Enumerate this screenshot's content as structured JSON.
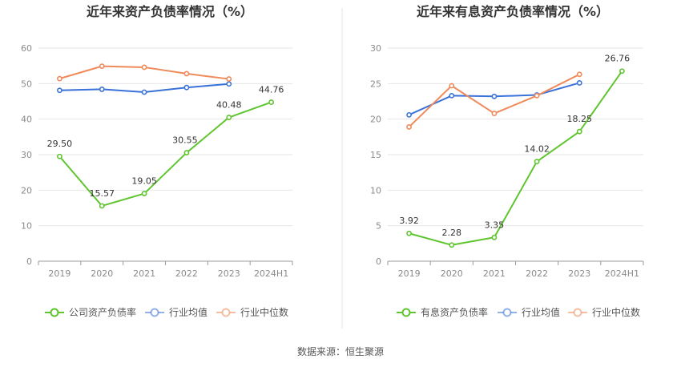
{
  "source": "数据来源：恒生聚源",
  "chart_data": [
    {
      "type": "line",
      "title": "近年来资产负债率情况（%）",
      "categories": [
        "2019",
        "2020",
        "2021",
        "2022",
        "2023",
        "2024H1"
      ],
      "ylim": [
        0,
        60
      ],
      "yticks": [
        0,
        10,
        20,
        30,
        40,
        50,
        60
      ],
      "grid": true,
      "legend_position": "bottom",
      "series": [
        {
          "name": "公司资产负债率",
          "color": "#5fc52e",
          "values": [
            29.5,
            15.57,
            19.05,
            30.55,
            40.48,
            44.76
          ],
          "labels": [
            "29.50",
            "15.57",
            "19.05",
            "30.55",
            "40.48",
            "44.76"
          ]
        },
        {
          "name": "行业均值",
          "color": "#3b72d9",
          "values": [
            48.1,
            48.4,
            47.6,
            48.9,
            49.9,
            null
          ]
        },
        {
          "name": "行业中位数",
          "color": "#ef8a5a",
          "values": [
            51.4,
            54.9,
            54.6,
            52.8,
            51.3,
            null
          ]
        }
      ]
    },
    {
      "type": "line",
      "title": "近年来有息资产负债率情况（%）",
      "categories": [
        "2019",
        "2020",
        "2021",
        "2022",
        "2023",
        "2024H1"
      ],
      "ylim": [
        0,
        30
      ],
      "yticks": [
        0,
        5,
        10,
        15,
        20,
        25,
        30
      ],
      "grid": true,
      "legend_position": "bottom",
      "series": [
        {
          "name": "有息资产负债率",
          "color": "#5fc52e",
          "values": [
            3.92,
            2.28,
            3.35,
            14.02,
            18.25,
            26.76
          ],
          "labels": [
            "3.92",
            "2.28",
            "3.35",
            "14.02",
            "18.25",
            "26.76"
          ]
        },
        {
          "name": "行业均值",
          "color": "#3b72d9",
          "values": [
            20.6,
            23.3,
            23.2,
            23.4,
            25.1,
            null
          ]
        },
        {
          "name": "行业中位数",
          "color": "#ef8a5a",
          "values": [
            18.9,
            24.7,
            20.8,
            23.3,
            26.3,
            null
          ]
        }
      ]
    }
  ]
}
